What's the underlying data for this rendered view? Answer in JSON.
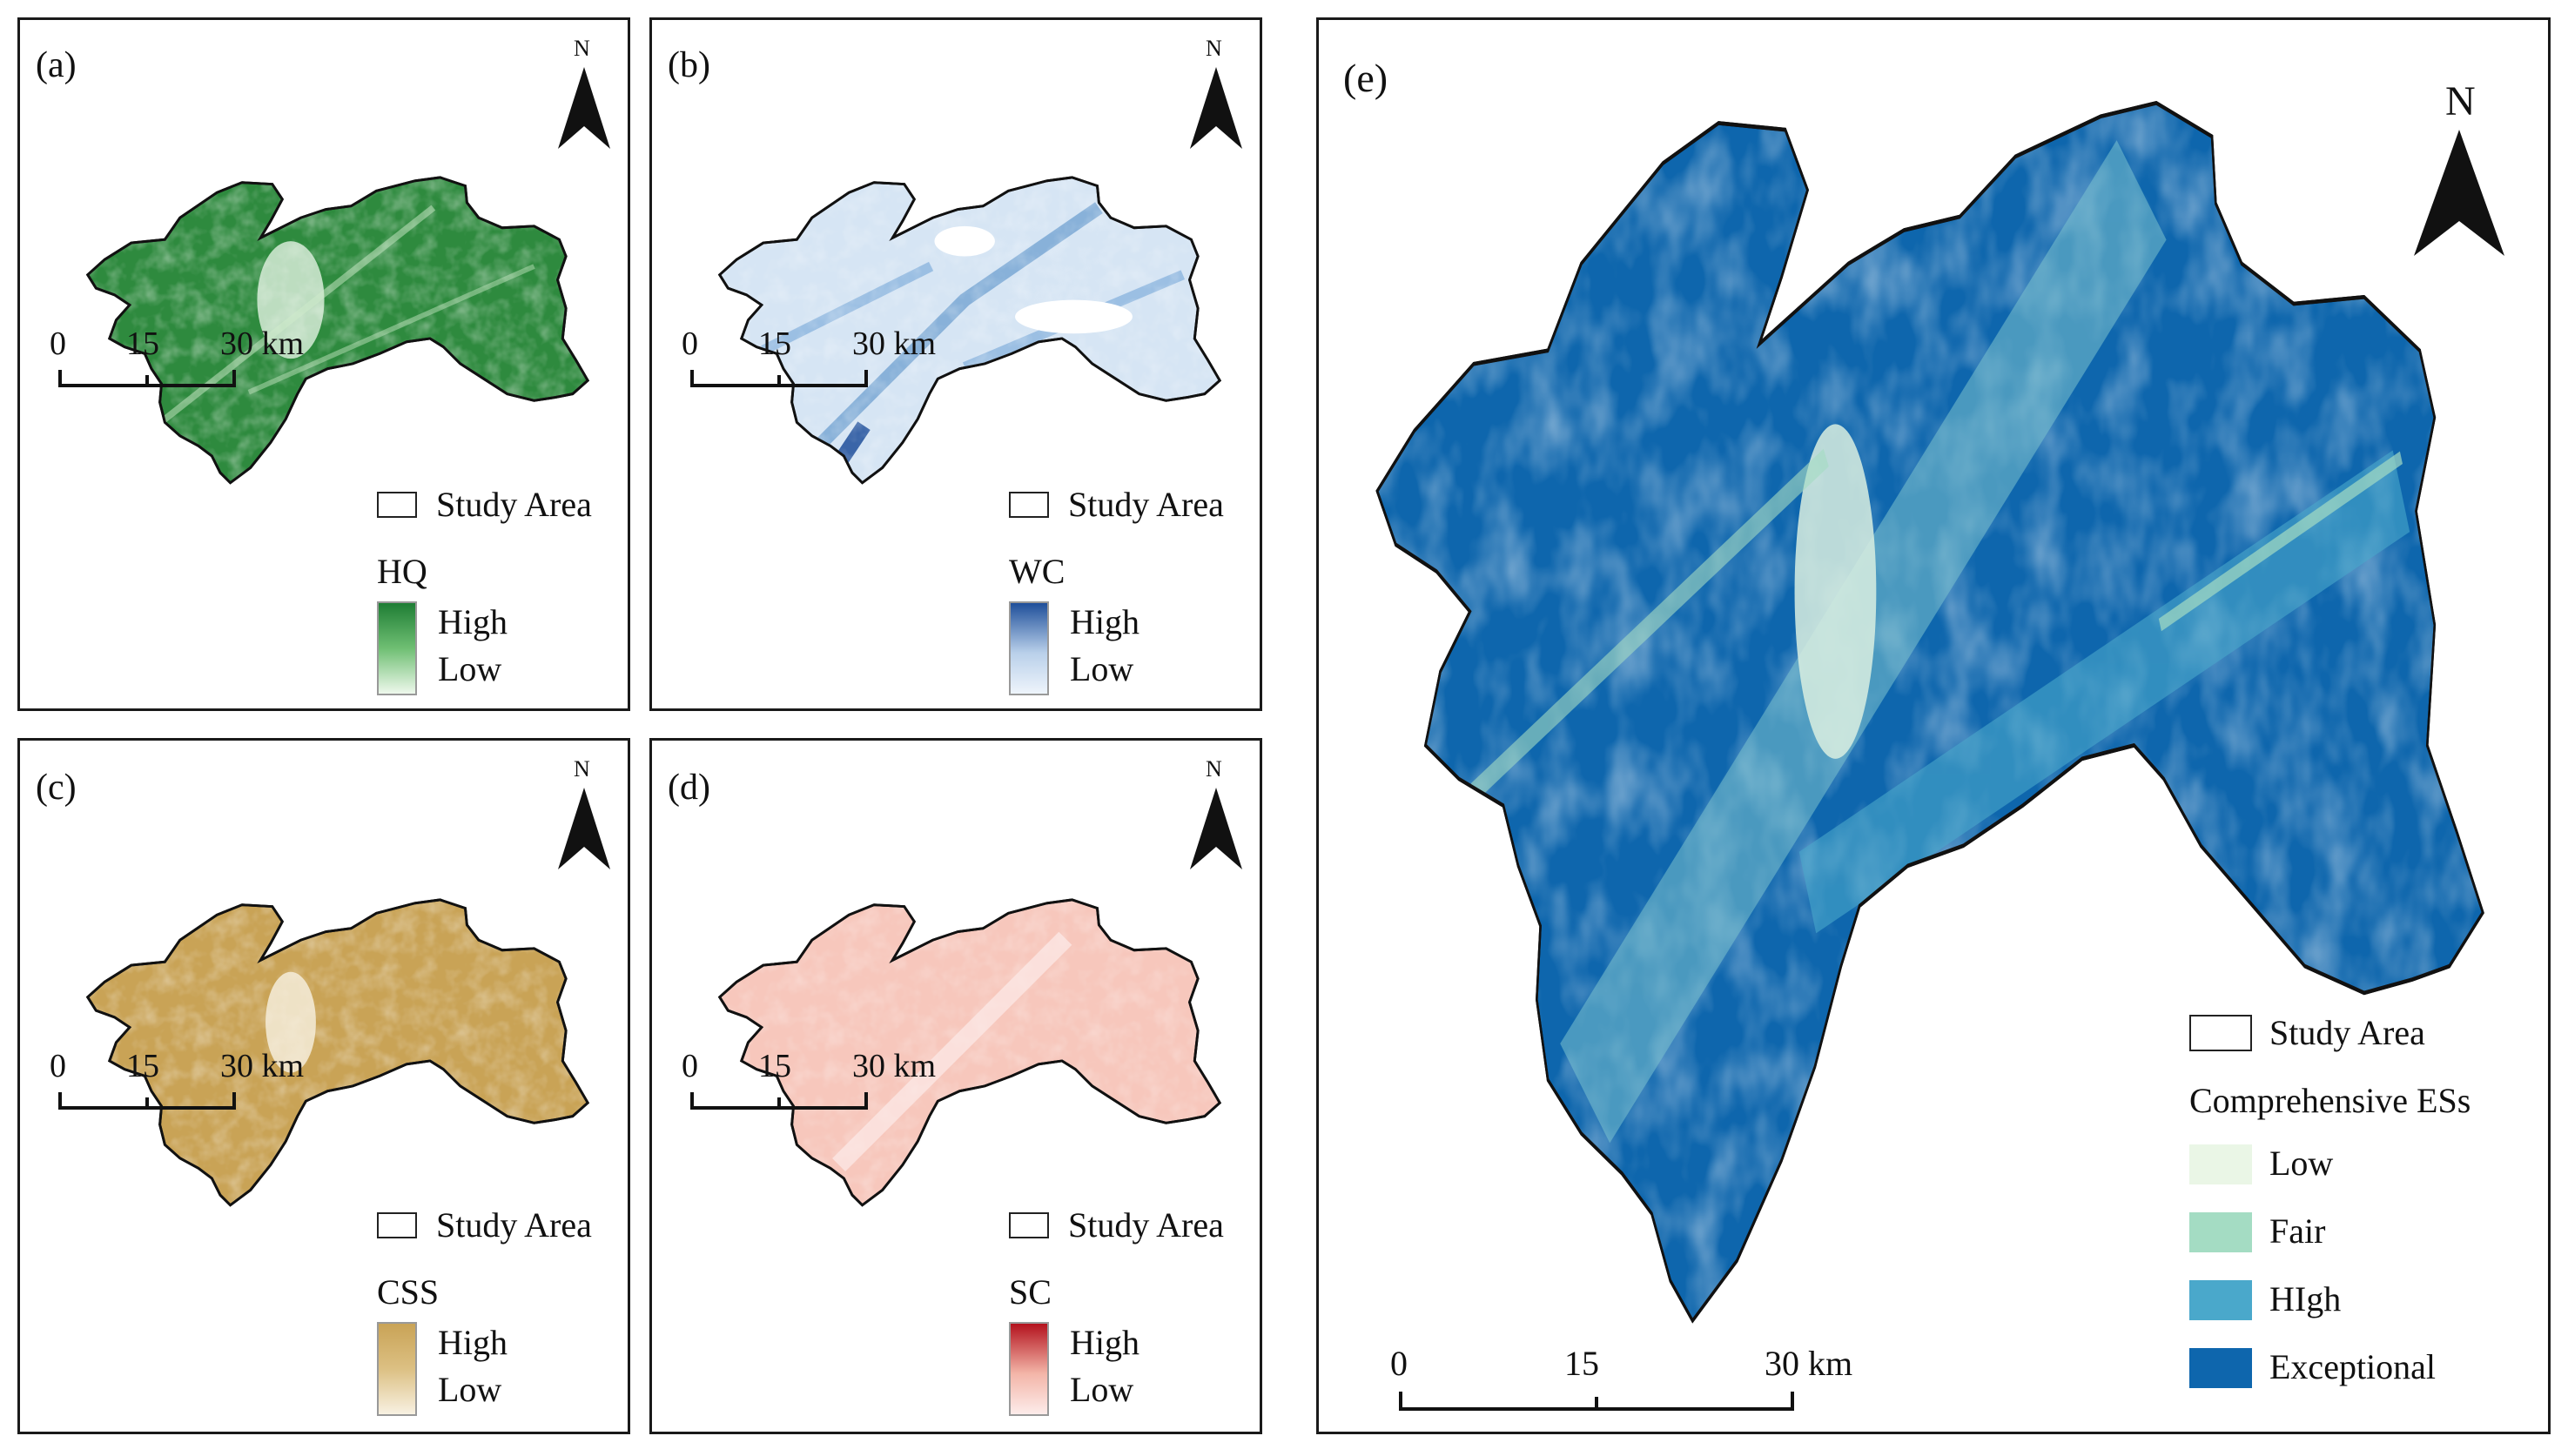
{
  "panels": [
    {
      "label": "(a)",
      "north": "N",
      "study_area": "Study Area",
      "variable": "HQ",
      "high": "High",
      "low": "Low",
      "scale": [
        "0",
        "15",
        "30 km"
      ],
      "colors": {
        "high": "#1e7d34",
        "mid": "#6fbf73",
        "low": "#eef8ec"
      }
    },
    {
      "label": "(b)",
      "north": "N",
      "study_area": "Study Area",
      "variable": "WC",
      "high": "High",
      "low": "Low",
      "scale": [
        "0",
        "15",
        "30 km"
      ],
      "colors": {
        "high": "#1f4f9a",
        "mid": "#b9d0ea",
        "low": "#eef4fb"
      }
    },
    {
      "label": "(c)",
      "north": "N",
      "study_area": "Study Area",
      "variable": "CSS",
      "high": "High",
      "low": "Low",
      "scale": [
        "0",
        "15",
        "30 km"
      ],
      "colors": {
        "high": "#c9a356",
        "mid": "#dcc083",
        "low": "#f8f1e2"
      }
    },
    {
      "label": "(d)",
      "north": "N",
      "study_area": "Study Area",
      "variable": "SC",
      "high": "High",
      "low": "Low",
      "scale": [
        "0",
        "15",
        "30 km"
      ],
      "colors": {
        "high": "#b3121d",
        "mid": "#f3b5a8",
        "low": "#fdecea"
      }
    }
  ],
  "main": {
    "label": "(e)",
    "north": "N",
    "study_area": "Study Area",
    "legend_title": "Comprehensive ESs",
    "classes": [
      {
        "name": "Low",
        "color": "#eaf6e6"
      },
      {
        "name": "Fair",
        "color": "#a4dcc3"
      },
      {
        "name": "HIgh",
        "color": "#4aa8cb"
      },
      {
        "name": "Exceptional",
        "color": "#0e66ad"
      }
    ],
    "scale": [
      "0",
      "15",
      "30 km"
    ]
  }
}
